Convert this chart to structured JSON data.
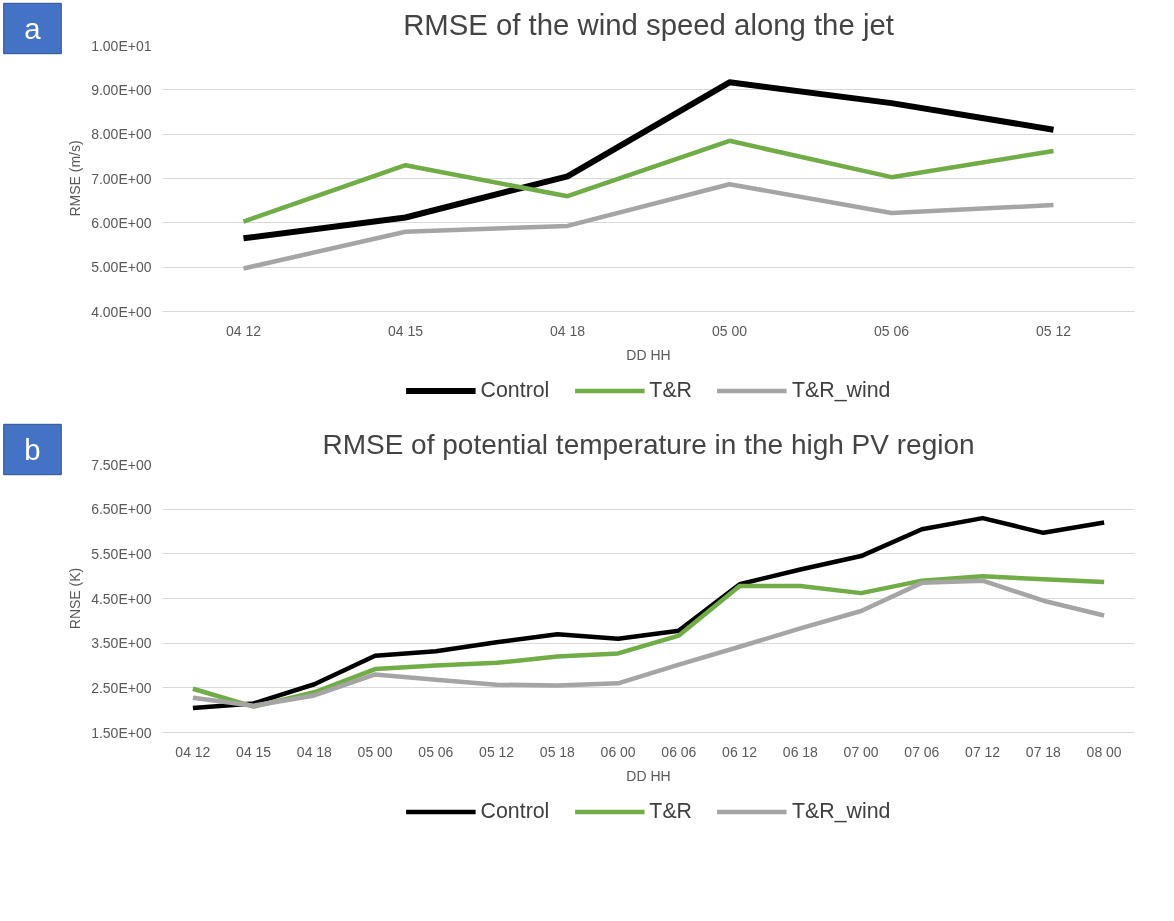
{
  "chart_data": [
    {
      "type": "line",
      "title": "RMSE of the wind speed along the jet",
      "xlabel": "DD HH",
      "ylabel": "RMSE (m/s)",
      "annotations": [
        "a"
      ],
      "categories": [
        "04 12",
        "04 15",
        "04 18",
        "05 00",
        "05 06",
        "05 12"
      ],
      "series": [
        {
          "name": "Control",
          "color": "#000000",
          "values": [
            5.65,
            6.12,
            7.05,
            9.17,
            8.7,
            8.1
          ]
        },
        {
          "name": "T&R",
          "color": "#70ad47",
          "values": [
            6.03,
            7.3,
            6.6,
            7.85,
            7.03,
            7.62
          ]
        },
        {
          "name": "T&R_wind",
          "color": "#a5a5a5",
          "values": [
            4.97,
            5.8,
            5.93,
            6.87,
            6.22,
            6.4
          ]
        }
      ],
      "ylim": [
        4,
        10
      ],
      "yticks": [
        {
          "value": 4,
          "label": "4.00E+00"
        },
        {
          "value": 5,
          "label": "5.00E+00"
        },
        {
          "value": 6,
          "label": "6.00E+00"
        },
        {
          "value": 7,
          "label": "7.00E+00"
        },
        {
          "value": 8,
          "label": "8.00E+00"
        },
        {
          "value": 9,
          "label": "9.00E+00"
        },
        {
          "value": 10,
          "label": "1.00E+01"
        }
      ],
      "grid": "y",
      "legend": "bottom",
      "marker": "none",
      "line_style": "solid"
    },
    {
      "type": "line",
      "title": "RMSE of potential temperature in the high PV region",
      "xlabel": "DD HH",
      "ylabel": "RNSE (K)",
      "annotations": [
        "b"
      ],
      "categories": [
        "04 12",
        "04 15",
        "04 18",
        "05 00",
        "05 06",
        "05 12",
        "05 18",
        "06 00",
        "06 06",
        "06 12",
        "06 18",
        "07 00",
        "07 06",
        "07 12",
        "07 18",
        "08 00"
      ],
      "series": [
        {
          "name": "Control",
          "color": "#000000",
          "values": [
            2.05,
            2.15,
            2.58,
            3.22,
            3.32,
            3.52,
            3.7,
            3.6,
            3.78,
            4.82,
            5.15,
            5.45,
            6.05,
            6.3,
            5.97,
            6.2
          ]
        },
        {
          "name": "T&R",
          "color": "#70ad47",
          "values": [
            2.48,
            2.08,
            2.4,
            2.92,
            3.0,
            3.06,
            3.2,
            3.27,
            3.67,
            4.78,
            4.78,
            4.62,
            4.9,
            5.0,
            4.93,
            4.87
          ]
        },
        {
          "name": "T&R_wind",
          "color": "#a5a5a5",
          "values": [
            2.28,
            2.1,
            2.33,
            2.8,
            2.68,
            2.57,
            2.55,
            2.6,
            3.02,
            3.42,
            3.83,
            4.22,
            4.85,
            4.9,
            4.45,
            4.12
          ]
        }
      ],
      "ylim": [
        1.5,
        7.5
      ],
      "yticks": [
        {
          "value": 1.5,
          "label": "1.50E+00"
        },
        {
          "value": 2.5,
          "label": "2.50E+00"
        },
        {
          "value": 3.5,
          "label": "3.50E+00"
        },
        {
          "value": 4.5,
          "label": "4.50E+00"
        },
        {
          "value": 5.5,
          "label": "5.50E+00"
        },
        {
          "value": 6.5,
          "label": "6.50E+00"
        },
        {
          "value": 7.5,
          "label": "7.50E+00"
        }
      ],
      "grid": "y",
      "legend": "bottom",
      "marker": "none",
      "line_style": "solid"
    }
  ]
}
